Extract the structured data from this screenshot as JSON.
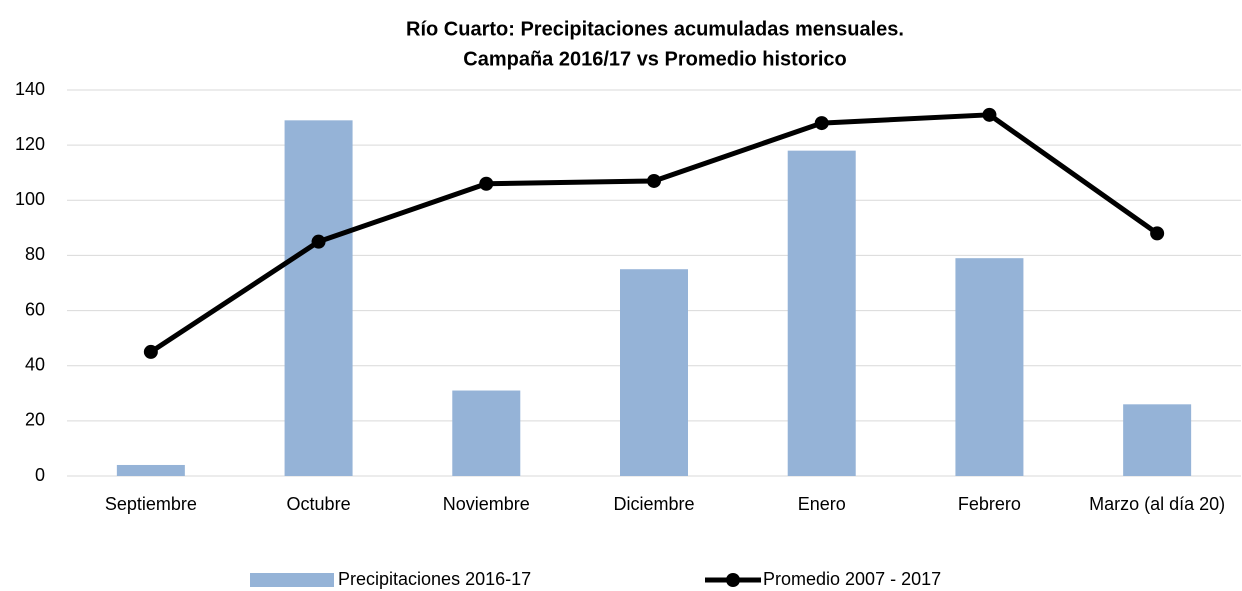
{
  "chart_data": {
    "type": "combo",
    "title": [
      "Río Cuarto: Precipitaciones acumuladas mensuales.",
      "Campaña 2016/17 vs Promedio historico"
    ],
    "categories": [
      "Septiembre",
      "Octubre",
      "Noviembre",
      "Diciembre",
      "Enero",
      "Febrero",
      "Marzo (al día 20)"
    ],
    "series": [
      {
        "name": "Precipitaciones 2016-17",
        "type": "bar",
        "color": "#95b3d7",
        "values": [
          4,
          129,
          31,
          75,
          118,
          79,
          26
        ]
      },
      {
        "name": "Promedio 2007 - 2017",
        "type": "line",
        "color": "#000000",
        "values": [
          45,
          85,
          106,
          107,
          128,
          131,
          88
        ]
      }
    ],
    "ylim": [
      0,
      140
    ],
    "yticks": [
      0,
      20,
      40,
      60,
      80,
      100,
      120,
      140
    ],
    "grid": true,
    "legend": "bottom"
  }
}
